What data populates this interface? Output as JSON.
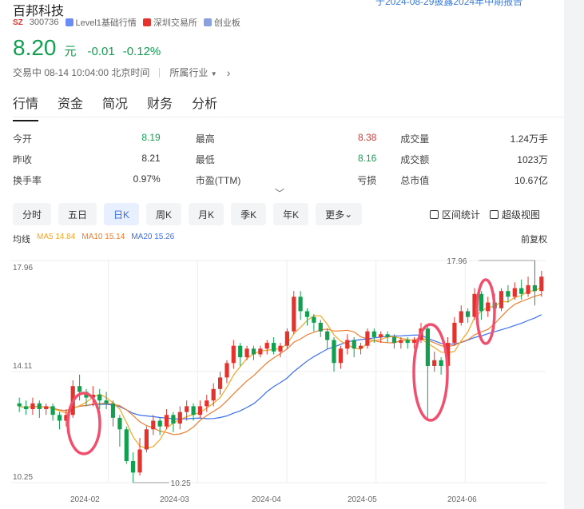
{
  "notice": "于2024-08-29披露2024年中期报告",
  "stock": {
    "name": "百邦科技",
    "market_badge": "SZ",
    "code": "300736",
    "tags": [
      "Level1基础行情",
      "深圳交易所",
      "创业板"
    ],
    "price": "8.20",
    "unit": "元",
    "change": "-0.01",
    "change_pct": "-0.12%",
    "status": "交易中 08-14 10:04:00 北京时间",
    "industry_label": "所属行业"
  },
  "tabs": [
    "行情",
    "资金",
    "简况",
    "财务",
    "分析"
  ],
  "stats": [
    [
      [
        "今开",
        "8.19",
        "green"
      ],
      [
        "最高",
        "8.38",
        "red"
      ],
      [
        "成交量",
        "1.24万手",
        ""
      ]
    ],
    [
      [
        "昨收",
        "8.21",
        ""
      ],
      [
        "最低",
        "8.16",
        "green"
      ],
      [
        "成交额",
        "1023万",
        ""
      ]
    ],
    [
      [
        "换手率",
        "0.97%",
        ""
      ],
      [
        "市盈(TTM)",
        "亏损",
        ""
      ],
      [
        "总市值",
        "10.67亿",
        ""
      ]
    ]
  ],
  "periods": [
    "分时",
    "五日",
    "日K",
    "周K",
    "月K",
    "季K",
    "年K",
    "更多"
  ],
  "active_period": "日K",
  "tools": [
    "区间统计",
    "超级视图"
  ],
  "ma": {
    "label": "均线",
    "ma5": "MA5 14.84",
    "ma10": "MA10 15.14",
    "ma20": "MA20 15.26"
  },
  "adjust": "前复权",
  "colors": {
    "up": "#e5322d",
    "down": "#12a050",
    "ma5": "#f5a623",
    "ma10": "#f07d2f",
    "ma20": "#3a6ff0",
    "highlight": "#f0506e"
  },
  "chart_data": {
    "type": "candlestick",
    "y_ticks": [
      "17.96",
      "14.11",
      "10.25"
    ],
    "ylim": [
      10.25,
      17.96
    ],
    "x_ticks": [
      "2024-02",
      "2024-03",
      "2024-04",
      "2024-05",
      "2024-06"
    ],
    "annotations": [
      {
        "label": "17.96",
        "kind": "max"
      },
      {
        "label": "10.25",
        "kind": "min"
      }
    ],
    "candles": [
      [
        13.0,
        12.9,
        13.2,
        12.7
      ],
      [
        12.9,
        12.8,
        13.1,
        12.6
      ],
      [
        12.8,
        13.0,
        13.2,
        12.6
      ],
      [
        13.0,
        12.8,
        13.1,
        12.5
      ],
      [
        12.8,
        12.9,
        13.0,
        12.6
      ],
      [
        12.9,
        12.6,
        13.0,
        12.4
      ],
      [
        12.6,
        12.4,
        12.7,
        12.1
      ],
      [
        12.4,
        12.6,
        12.8,
        12.2
      ],
      [
        12.6,
        13.6,
        13.8,
        12.5
      ],
      [
        13.6,
        13.4,
        14.0,
        13.1
      ],
      [
        13.4,
        13.2,
        13.5,
        12.9
      ],
      [
        13.2,
        13.3,
        13.6,
        12.9
      ],
      [
        13.3,
        13.1,
        13.5,
        12.8
      ],
      [
        13.1,
        13.0,
        13.4,
        12.8
      ],
      [
        13.0,
        12.5,
        13.1,
        12.2
      ],
      [
        12.5,
        12.1,
        12.6,
        11.5
      ],
      [
        12.1,
        11.0,
        12.2,
        10.9
      ],
      [
        11.0,
        10.6,
        11.3,
        10.25
      ],
      [
        10.6,
        11.4,
        11.8,
        10.5
      ],
      [
        11.4,
        12.1,
        12.2,
        11.3
      ],
      [
        12.1,
        12.4,
        12.6,
        11.9
      ],
      [
        12.4,
        12.2,
        12.5,
        11.9
      ],
      [
        12.2,
        12.6,
        12.8,
        12.1
      ],
      [
        12.6,
        12.3,
        12.7,
        12.0
      ],
      [
        12.3,
        12.7,
        12.9,
        12.1
      ],
      [
        12.7,
        12.9,
        13.1,
        12.4
      ],
      [
        12.9,
        12.6,
        13.0,
        12.4
      ],
      [
        12.6,
        12.9,
        13.1,
        12.5
      ],
      [
        12.9,
        13.1,
        13.3,
        12.7
      ],
      [
        13.1,
        13.5,
        13.7,
        12.9
      ],
      [
        13.5,
        13.9,
        14.1,
        13.3
      ],
      [
        13.9,
        14.4,
        14.5,
        13.7
      ],
      [
        14.4,
        15.0,
        15.2,
        14.2
      ],
      [
        15.0,
        14.6,
        15.1,
        14.3
      ],
      [
        14.6,
        14.9,
        15.0,
        14.5
      ],
      [
        14.9,
        14.7,
        15.0,
        14.5
      ],
      [
        14.7,
        14.9,
        15.0,
        14.6
      ],
      [
        14.9,
        15.1,
        15.2,
        14.7
      ],
      [
        15.1,
        14.8,
        15.3,
        14.7
      ],
      [
        14.8,
        15.0,
        15.1,
        14.6
      ],
      [
        15.0,
        15.5,
        15.6,
        14.9
      ],
      [
        15.5,
        16.7,
        16.9,
        15.4
      ],
      [
        16.7,
        16.2,
        16.9,
        15.9
      ],
      [
        16.2,
        16.0,
        16.3,
        15.7
      ],
      [
        16.0,
        15.8,
        16.1,
        15.5
      ],
      [
        15.8,
        15.5,
        15.9,
        15.3
      ],
      [
        15.5,
        15.2,
        15.6,
        14.9
      ],
      [
        15.2,
        14.4,
        15.3,
        14.1
      ],
      [
        14.4,
        14.9,
        15.0,
        14.2
      ],
      [
        14.9,
        15.2,
        15.4,
        14.7
      ],
      [
        15.2,
        14.9,
        15.3,
        14.6
      ],
      [
        14.9,
        15.0,
        15.1,
        14.7
      ],
      [
        15.0,
        15.5,
        15.6,
        14.9
      ],
      [
        15.5,
        15.3,
        15.6,
        15.1
      ],
      [
        15.3,
        15.4,
        15.5,
        15.1
      ],
      [
        15.4,
        15.3,
        15.5,
        15.1
      ],
      [
        15.3,
        15.1,
        15.4,
        14.9
      ],
      [
        15.1,
        15.2,
        15.3,
        14.9
      ],
      [
        15.2,
        15.1,
        15.3,
        14.9
      ],
      [
        15.1,
        15.2,
        15.3,
        14.9
      ],
      [
        15.2,
        15.6,
        15.8,
        15.1
      ],
      [
        15.6,
        14.3,
        15.7,
        12.5
      ],
      [
        14.3,
        14.5,
        14.8,
        14.1
      ],
      [
        14.5,
        14.3,
        14.6,
        14.0
      ],
      [
        14.3,
        15.1,
        15.3,
        14.2
      ],
      [
        15.1,
        15.8,
        16.0,
        15.0
      ],
      [
        15.8,
        16.2,
        16.4,
        15.7
      ],
      [
        16.2,
        16.0,
        16.3,
        15.8
      ],
      [
        16.0,
        16.8,
        17.0,
        15.9
      ],
      [
        16.8,
        16.2,
        16.9,
        15.9
      ],
      [
        16.2,
        16.5,
        16.7,
        16.0
      ],
      [
        16.5,
        16.3,
        16.8,
        16.1
      ],
      [
        16.3,
        16.9,
        17.0,
        16.2
      ],
      [
        16.9,
        16.7,
        17.1,
        16.5
      ],
      [
        16.7,
        17.0,
        17.2,
        16.6
      ],
      [
        17.0,
        16.8,
        17.3,
        16.6
      ],
      [
        16.8,
        17.1,
        17.4,
        16.7
      ],
      [
        17.1,
        16.9,
        17.96,
        16.4
      ],
      [
        16.9,
        17.4,
        17.6,
        16.7
      ]
    ]
  }
}
